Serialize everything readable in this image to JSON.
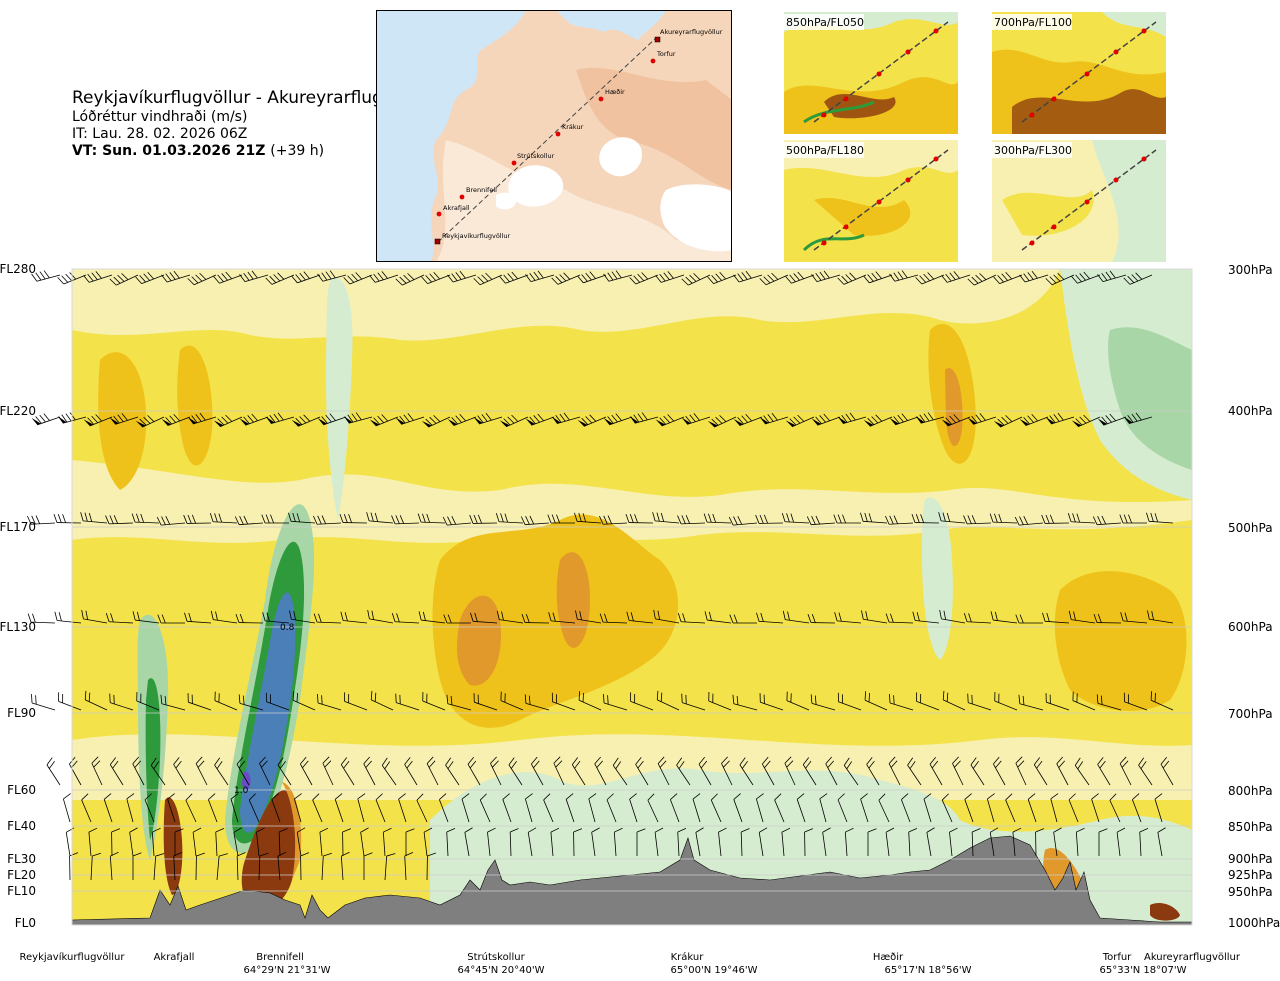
{
  "header": {
    "route": "Reykjavíkurflugvöllur - Akureyrarflugvöllur",
    "variable": "Lóðréttur vindhraði (m/s)",
    "issue_time": "IT: Lau. 28. 02. 2026 06Z",
    "valid_time_prefix": "VT:",
    "valid_time": "Sun. 01.03.2026 21Z",
    "lead": "(+39 h)"
  },
  "route_map": {
    "waypoints": [
      "Akureyrarflugvöllur",
      "Torfur",
      "Hæðir",
      "Krákur",
      "Strútskollur",
      "Brennifell",
      "Akrafjall",
      "Reykjavíkurflugvöllur"
    ]
  },
  "level_panels": [
    "850hPa/FL050",
    "700hPa/FL100",
    "500hPa/FL180",
    "300hPa/FL300"
  ],
  "chart_data": {
    "type": "heatmap",
    "title": "Lóðréttur vindhraði (m/s)",
    "x_points": [
      {
        "name": "Reykjavíkurflugvöllur",
        "coord": ""
      },
      {
        "name": "Akrafjall",
        "coord": ""
      },
      {
        "name": "Brennifell",
        "coord": "64°29'N 21°31'W"
      },
      {
        "name": "Strútskollur",
        "coord": "64°45'N 20°40'W"
      },
      {
        "name": "Krákur",
        "coord": "65°00'N 19°46'W"
      },
      {
        "name": "Hæðir",
        "coord": "65°17'N 18°56'W"
      },
      {
        "name": "Torfur",
        "coord": "65°33'N 18°07'W"
      },
      {
        "name": "Akureyrarflugvöllur",
        "coord": ""
      }
    ],
    "flight_levels_left": [
      "FL280",
      "FL220",
      "FL170",
      "FL130",
      "FL90",
      "FL60",
      "FL40",
      "FL30",
      "FL20",
      "FL10",
      "FL0"
    ],
    "pressure_levels_right": [
      "300hPa",
      "400hPa",
      "500hPa",
      "600hPa",
      "700hPa",
      "800hPa",
      "850hPa",
      "900hPa",
      "925hPa",
      "950hPa",
      "1000hPa"
    ],
    "contour_labels": [
      "0.8",
      "1.0"
    ],
    "fill_colors": {
      "strong_sink": "#8b3a0f",
      "sink": "#e0992a",
      "weak_sink": "#eec21a",
      "slight_sink": "#f4e24a",
      "near_zero": "#f7f0b0",
      "slight_rise": "#d6ecd0",
      "rise": "#a9d6a7",
      "strong_rise": "#2e9a3c",
      "very_strong_rise": "#4a7fb8",
      "terrain": "#7f7f7f"
    }
  }
}
